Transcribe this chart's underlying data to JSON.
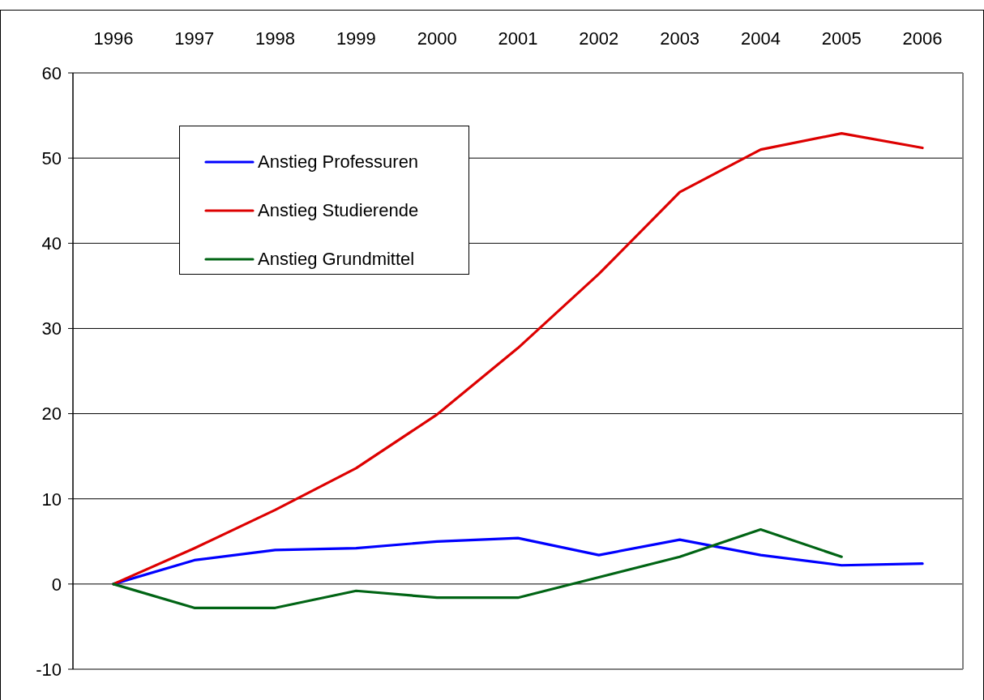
{
  "chart_data": {
    "type": "line",
    "categories": [
      "1996",
      "1997",
      "1998",
      "1999",
      "2000",
      "2001",
      "2002",
      "2003",
      "2004",
      "2005",
      "2006"
    ],
    "series": [
      {
        "name": "Anstieg Professuren",
        "color": "#0000ff",
        "values": [
          0,
          2.8,
          4.0,
          4.2,
          5.0,
          5.4,
          3.4,
          5.2,
          3.4,
          2.2,
          2.4
        ]
      },
      {
        "name": "Anstieg Studierende",
        "color": "#dd0000",
        "values": [
          0,
          4.2,
          8.7,
          13.6,
          19.9,
          27.7,
          36.4,
          46.0,
          51.0,
          52.9,
          51.2
        ]
      },
      {
        "name": "Anstieg Grundmittel",
        "color": "#006414",
        "values": [
          0,
          -2.8,
          -2.8,
          -0.8,
          -1.6,
          -1.6,
          0.8,
          3.2,
          6.4,
          3.2,
          null
        ]
      }
    ],
    "ylim": [
      -10,
      60
    ],
    "yticks": [
      -10,
      0,
      10,
      20,
      30,
      40,
      50,
      60
    ],
    "grid": "y",
    "legend": "top left",
    "marker": "none",
    "line_style": "solid"
  }
}
